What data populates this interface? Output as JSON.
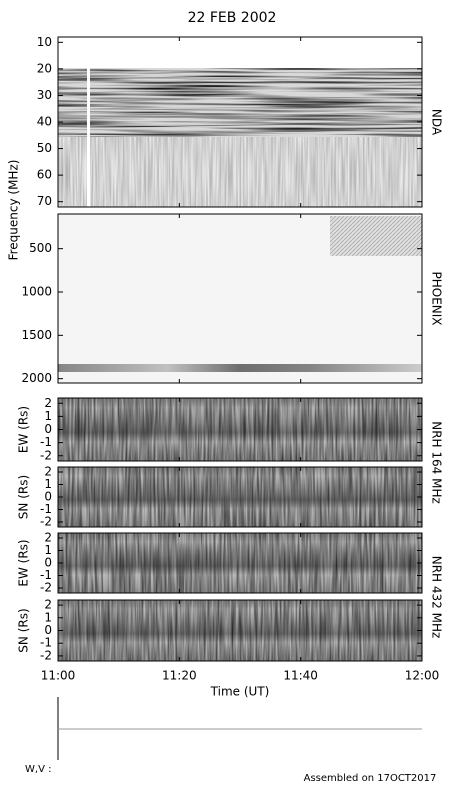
{
  "title": "22 FEB 2002",
  "frequency_label": "Frequency (MHz)",
  "instruments": [
    "NDA",
    "PHOENIX",
    "NRH 164 MHz",
    "NRH 432 MHz"
  ],
  "chart_data": [
    {
      "type": "spectrogram",
      "ylim": [
        8,
        72
      ],
      "yticks": [
        10,
        20,
        30,
        40,
        50,
        60,
        70
      ]
    },
    {
      "type": "spectrogram",
      "ylim": [
        100,
        2050
      ],
      "yticks": [
        500,
        1000,
        1500,
        2000
      ]
    },
    {
      "type": "spectrogram",
      "ylabel": "EW (Rs)",
      "ylim": [
        2.4,
        -2.4
      ],
      "yticks": [
        2,
        1,
        0,
        -1,
        -2
      ]
    },
    {
      "type": "spectrogram",
      "ylabel": "SN (Rs)",
      "ylim": [
        2.4,
        -2.4
      ],
      "yticks": [
        2,
        1,
        0,
        -1,
        -2
      ]
    },
    {
      "type": "spectrogram",
      "ylabel": "EW (Rs)",
      "ylim": [
        2.4,
        -2.4
      ],
      "yticks": [
        2,
        1,
        0,
        -1,
        -2
      ]
    },
    {
      "type": "spectrogram",
      "ylabel": "SN (Rs)",
      "ylim": [
        2.4,
        -2.4
      ],
      "yticks": [
        2,
        1,
        0,
        -1,
        -2
      ]
    }
  ],
  "time_axis": {
    "label": "Time (UT)",
    "xlim": [
      0,
      60
    ],
    "xticks": [
      {
        "value": 0,
        "label": "11:00"
      },
      {
        "value": 20,
        "label": "11:20"
      },
      {
        "value": 40,
        "label": "11:40"
      },
      {
        "value": 60,
        "label": "12:00"
      }
    ]
  },
  "wv_label": "W,V :",
  "footer": "Assembled on 17OCT2017"
}
